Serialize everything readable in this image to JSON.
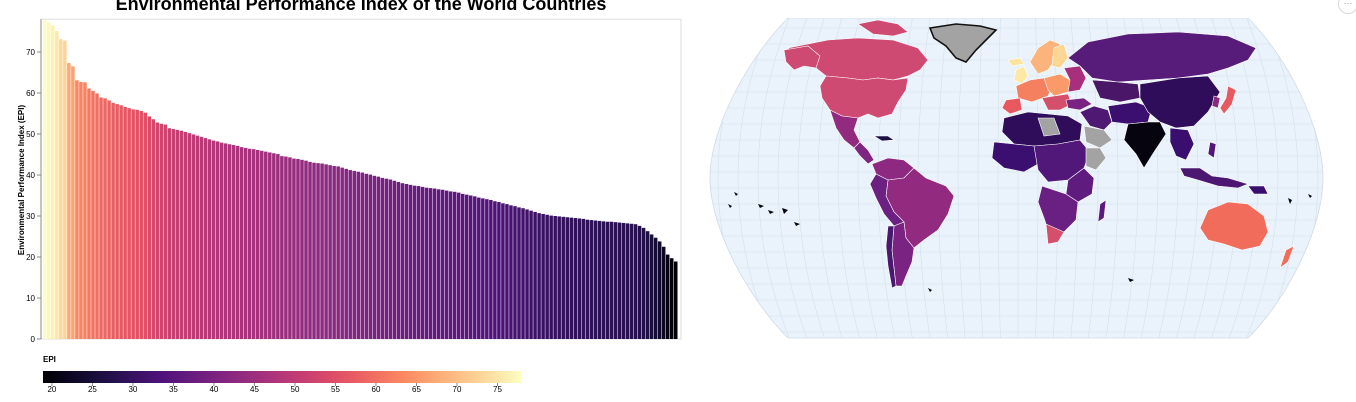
{
  "page": {
    "title": "Environmental Performance Index of the World Countries",
    "menu_icon": "ellipsis-icon"
  },
  "chart_data": [
    {
      "type": "bar",
      "title": "Environmental Performance Index of the World Countries",
      "xlabel": "",
      "ylabel": "Environmental Performance Index (EPI)",
      "ylim": [
        0,
        78
      ],
      "yticks": [
        0,
        10,
        20,
        30,
        40,
        50,
        60,
        70
      ],
      "grid": false,
      "sorted": "descending",
      "color_scale": "magma",
      "color_domain": [
        18.9,
        77.9
      ],
      "values": [
        77.9,
        77.2,
        76.5,
        75.1,
        73.1,
        72.8,
        67.3,
        66.5,
        63.1,
        62.7,
        62.6,
        61.1,
        60.5,
        59.9,
        58.9,
        58.7,
        58.2,
        57.6,
        57.3,
        57.0,
        56.6,
        56.3,
        56.0,
        55.9,
        55.6,
        55.2,
        54.3,
        53.6,
        52.8,
        52.5,
        52.3,
        51.4,
        51.2,
        51.0,
        50.8,
        50.5,
        50.2,
        49.9,
        49.6,
        49.3,
        49.0,
        48.7,
        48.4,
        48.2,
        47.9,
        47.7,
        47.5,
        47.3,
        47.1,
        46.8,
        46.6,
        46.4,
        46.3,
        46.1,
        45.9,
        45.7,
        45.5,
        45.3,
        45.1,
        44.6,
        44.5,
        44.3,
        44.0,
        43.9,
        43.7,
        43.5,
        43.2,
        43.0,
        42.9,
        42.8,
        42.6,
        42.4,
        42.2,
        42.1,
        41.8,
        41.5,
        41.2,
        41.0,
        40.8,
        40.6,
        40.3,
        40.1,
        39.8,
        39.6,
        39.3,
        39.1,
        38.9,
        38.6,
        38.3,
        38.0,
        37.8,
        37.6,
        37.4,
        37.3,
        37.1,
        36.9,
        36.8,
        36.7,
        36.5,
        36.4,
        36.2,
        36.0,
        35.9,
        35.7,
        35.4,
        35.2,
        35.0,
        34.8,
        34.5,
        34.3,
        34.1,
        33.9,
        33.6,
        33.4,
        33.1,
        32.9,
        32.6,
        32.4,
        32.1,
        31.9,
        31.6,
        31.3,
        31.0,
        30.7,
        30.5,
        30.3,
        30.1,
        30.0,
        29.9,
        29.8,
        29.7,
        29.6,
        29.5,
        29.4,
        29.3,
        29.1,
        29.0,
        28.9,
        28.8,
        28.7,
        28.6,
        28.6,
        28.5,
        28.4,
        28.3,
        28.2,
        28.1,
        28.0,
        27.6,
        27.1,
        26.3,
        25.5,
        24.7,
        23.8,
        22.5,
        20.6,
        19.7,
        18.9
      ]
    },
    {
      "type": "heatmap",
      "description": "Choropleth of EPI by country",
      "legend": {
        "title": "EPI",
        "ticks": [
          20,
          25,
          30,
          35,
          40,
          45,
          50,
          55,
          60,
          65,
          70,
          75
        ],
        "domain": [
          18.9,
          77.9
        ],
        "scheme": "magma"
      }
    }
  ],
  "colors": {
    "ocean": "#eaf3fb",
    "graticule": "#d3dfea",
    "no_data": "#a3a3a3",
    "axis": "#888888",
    "country_border": "#ffffff"
  }
}
